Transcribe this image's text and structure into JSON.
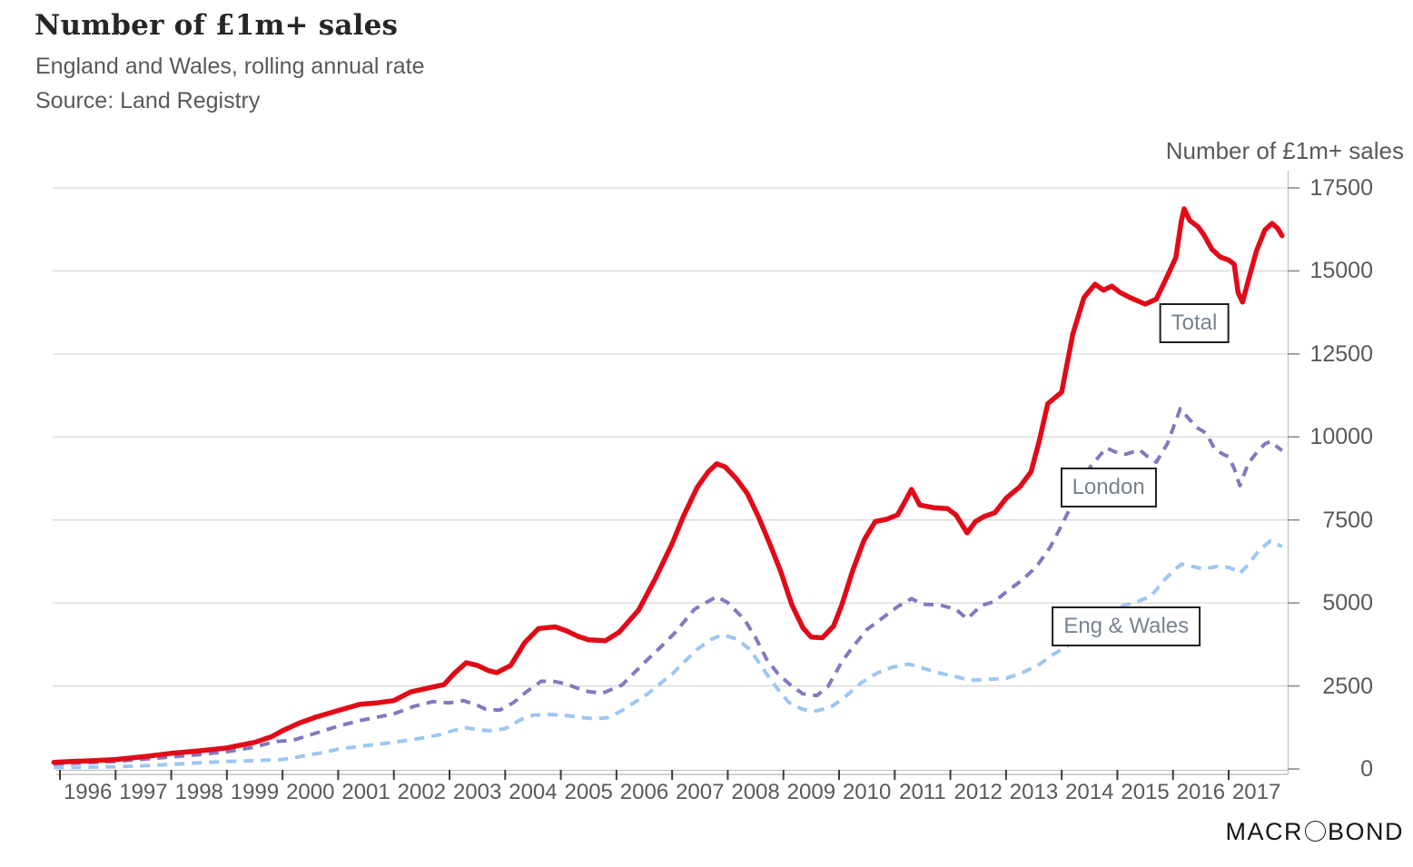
{
  "header": {
    "title": "Number of £1m+ sales",
    "subtitle": "England and Wales, rolling annual rate",
    "source": "Source: Land Registry"
  },
  "right_axis_title": "Number of £1m+ sales",
  "watermark": {
    "part1": "MACR",
    "part2": "BOND",
    "circle_icon": "circle-o-icon"
  },
  "colors": {
    "total": "#e20a18",
    "london": "#8478bf",
    "eng_wales": "#9dc6f2",
    "grid": "#d9d9d9",
    "axis_line": "#c3c3c3",
    "axis_line2": "#b3b3b3",
    "x_tick": "#3b3b3b",
    "y_tick": "#8c8c8c",
    "label_text": "#595959",
    "box_border": "#1f1f1f",
    "box_text": "#78828f"
  },
  "chart_data": {
    "type": "line",
    "title": "Number of £1m+ sales",
    "subtitle": "England and Wales, rolling annual rate",
    "source": "Land Registry",
    "grid": "horizontal",
    "legend_position": "on-chart-boxes",
    "x_axis": {
      "min": 1995.89,
      "max": 2018.06,
      "ticks": [
        1996,
        1997,
        1998,
        1999,
        2000,
        2001,
        2002,
        2003,
        2004,
        2005,
        2006,
        2007,
        2008,
        2009,
        2010,
        2011,
        2012,
        2013,
        2014,
        2015,
        2016,
        2017
      ]
    },
    "y_axis": {
      "label": "Number of £1m+ sales",
      "side": "right",
      "min": 0,
      "max": 18020,
      "ticks": [
        0,
        2500,
        5000,
        7500,
        10000,
        12500,
        15000,
        17500
      ]
    },
    "series": [
      {
        "name": "Total",
        "style": "solid",
        "color": "#e20a18",
        "width": 5.5,
        "points": [
          [
            1995.89,
            200
          ],
          [
            1996.2,
            225
          ],
          [
            1996.6,
            250
          ],
          [
            1997.0,
            285
          ],
          [
            1997.5,
            370
          ],
          [
            1998.0,
            470
          ],
          [
            1998.5,
            545
          ],
          [
            1999.0,
            635
          ],
          [
            1999.5,
            800
          ],
          [
            1999.8,
            970
          ],
          [
            2000.0,
            1150
          ],
          [
            2000.3,
            1380
          ],
          [
            2000.6,
            1560
          ],
          [
            2001.0,
            1760
          ],
          [
            2001.4,
            1950
          ],
          [
            2001.7,
            1990
          ],
          [
            2002.0,
            2060
          ],
          [
            2002.3,
            2320
          ],
          [
            2002.6,
            2430
          ],
          [
            2002.9,
            2540
          ],
          [
            2003.1,
            2900
          ],
          [
            2003.3,
            3200
          ],
          [
            2003.5,
            3120
          ],
          [
            2003.7,
            2960
          ],
          [
            2003.85,
            2900
          ],
          [
            2004.1,
            3120
          ],
          [
            2004.35,
            3800
          ],
          [
            2004.6,
            4230
          ],
          [
            2004.9,
            4280
          ],
          [
            2005.1,
            4160
          ],
          [
            2005.3,
            4000
          ],
          [
            2005.5,
            3890
          ],
          [
            2005.8,
            3860
          ],
          [
            2006.05,
            4120
          ],
          [
            2006.4,
            4790
          ],
          [
            2006.7,
            5740
          ],
          [
            2007.0,
            6780
          ],
          [
            2007.2,
            7600
          ],
          [
            2007.45,
            8480
          ],
          [
            2007.65,
            8950
          ],
          [
            2007.8,
            9190
          ],
          [
            2007.95,
            9100
          ],
          [
            2008.15,
            8750
          ],
          [
            2008.35,
            8300
          ],
          [
            2008.55,
            7600
          ],
          [
            2008.75,
            6800
          ],
          [
            2008.95,
            5950
          ],
          [
            2009.15,
            4950
          ],
          [
            2009.35,
            4250
          ],
          [
            2009.5,
            3970
          ],
          [
            2009.7,
            3950
          ],
          [
            2009.9,
            4300
          ],
          [
            2010.05,
            4950
          ],
          [
            2010.25,
            6000
          ],
          [
            2010.45,
            6900
          ],
          [
            2010.65,
            7450
          ],
          [
            2010.85,
            7520
          ],
          [
            2011.05,
            7650
          ],
          [
            2011.2,
            8100
          ],
          [
            2011.3,
            8420
          ],
          [
            2011.45,
            7950
          ],
          [
            2011.7,
            7870
          ],
          [
            2011.95,
            7840
          ],
          [
            2012.1,
            7650
          ],
          [
            2012.3,
            7110
          ],
          [
            2012.45,
            7450
          ],
          [
            2012.6,
            7600
          ],
          [
            2012.8,
            7720
          ],
          [
            2013.0,
            8150
          ],
          [
            2013.25,
            8500
          ],
          [
            2013.45,
            8950
          ],
          [
            2013.6,
            9900
          ],
          [
            2013.75,
            11000
          ],
          [
            2014.0,
            11350
          ],
          [
            2014.2,
            13100
          ],
          [
            2014.4,
            14200
          ],
          [
            2014.6,
            14600
          ],
          [
            2014.75,
            14420
          ],
          [
            2014.9,
            14540
          ],
          [
            2015.05,
            14350
          ],
          [
            2015.25,
            14180
          ],
          [
            2015.5,
            14000
          ],
          [
            2015.7,
            14150
          ],
          [
            2015.9,
            14850
          ],
          [
            2016.05,
            15400
          ],
          [
            2016.15,
            16500
          ],
          [
            2016.2,
            16870
          ],
          [
            2016.3,
            16520
          ],
          [
            2016.45,
            16330
          ],
          [
            2016.55,
            16100
          ],
          [
            2016.7,
            15650
          ],
          [
            2016.85,
            15420
          ],
          [
            2017.0,
            15330
          ],
          [
            2017.1,
            15200
          ],
          [
            2017.17,
            14350
          ],
          [
            2017.25,
            14060
          ],
          [
            2017.35,
            14700
          ],
          [
            2017.5,
            15600
          ],
          [
            2017.65,
            16230
          ],
          [
            2017.78,
            16430
          ],
          [
            2017.88,
            16280
          ],
          [
            2017.96,
            16060
          ]
        ]
      },
      {
        "name": "London",
        "style": "dashed",
        "color": "#8478bf",
        "width": 4,
        "points": [
          [
            1995.89,
            150
          ],
          [
            1996.3,
            175
          ],
          [
            1996.7,
            200
          ],
          [
            1997.0,
            228
          ],
          [
            1997.5,
            295
          ],
          [
            1998.0,
            360
          ],
          [
            1998.5,
            435
          ],
          [
            1999.0,
            520
          ],
          [
            1999.5,
            660
          ],
          [
            1999.85,
            820
          ],
          [
            2000.2,
            870
          ],
          [
            2000.6,
            1080
          ],
          [
            2001.0,
            1290
          ],
          [
            2001.4,
            1460
          ],
          [
            2001.7,
            1560
          ],
          [
            2002.0,
            1660
          ],
          [
            2002.35,
            1880
          ],
          [
            2002.7,
            2030
          ],
          [
            2003.0,
            1990
          ],
          [
            2003.25,
            2060
          ],
          [
            2003.5,
            1920
          ],
          [
            2003.65,
            1800
          ],
          [
            2003.9,
            1770
          ],
          [
            2004.15,
            2000
          ],
          [
            2004.4,
            2350
          ],
          [
            2004.65,
            2640
          ],
          [
            2004.9,
            2630
          ],
          [
            2005.1,
            2560
          ],
          [
            2005.3,
            2430
          ],
          [
            2005.5,
            2330
          ],
          [
            2005.75,
            2280
          ],
          [
            2006.1,
            2530
          ],
          [
            2006.5,
            3200
          ],
          [
            2006.8,
            3680
          ],
          [
            2007.05,
            4100
          ],
          [
            2007.4,
            4810
          ],
          [
            2007.8,
            5190
          ],
          [
            2008.0,
            5010
          ],
          [
            2008.3,
            4500
          ],
          [
            2008.5,
            3950
          ],
          [
            2008.7,
            3300
          ],
          [
            2008.9,
            2870
          ],
          [
            2009.1,
            2570
          ],
          [
            2009.35,
            2260
          ],
          [
            2009.6,
            2210
          ],
          [
            2009.8,
            2480
          ],
          [
            2010.05,
            3230
          ],
          [
            2010.25,
            3680
          ],
          [
            2010.5,
            4200
          ],
          [
            2010.75,
            4510
          ],
          [
            2011.05,
            4890
          ],
          [
            2011.3,
            5130
          ],
          [
            2011.5,
            4960
          ],
          [
            2011.8,
            4940
          ],
          [
            2012.1,
            4810
          ],
          [
            2012.3,
            4520
          ],
          [
            2012.55,
            4920
          ],
          [
            2012.8,
            5050
          ],
          [
            2013.0,
            5330
          ],
          [
            2013.3,
            5700
          ],
          [
            2013.55,
            6100
          ],
          [
            2013.8,
            6700
          ],
          [
            2014.0,
            7340
          ],
          [
            2014.25,
            8200
          ],
          [
            2014.5,
            9070
          ],
          [
            2014.8,
            9670
          ],
          [
            2015.0,
            9520
          ],
          [
            2015.15,
            9480
          ],
          [
            2015.4,
            9610
          ],
          [
            2015.55,
            9400
          ],
          [
            2015.7,
            9240
          ],
          [
            2015.9,
            9800
          ],
          [
            2016.13,
            10850
          ],
          [
            2016.3,
            10520
          ],
          [
            2016.45,
            10260
          ],
          [
            2016.6,
            10110
          ],
          [
            2016.75,
            9630
          ],
          [
            2016.9,
            9480
          ],
          [
            2017.0,
            9400
          ],
          [
            2017.1,
            9050
          ],
          [
            2017.2,
            8530
          ],
          [
            2017.35,
            9200
          ],
          [
            2017.5,
            9520
          ],
          [
            2017.65,
            9790
          ],
          [
            2017.75,
            9860
          ],
          [
            2017.96,
            9590
          ]
        ]
      },
      {
        "name": "Eng & Wales",
        "style": "dashed",
        "color": "#9dc6f2",
        "width": 4,
        "points": [
          [
            1995.89,
            45
          ],
          [
            1996.4,
            50
          ],
          [
            1997.0,
            65
          ],
          [
            1997.5,
            95
          ],
          [
            1998.0,
            140
          ],
          [
            1998.5,
            185
          ],
          [
            1999.0,
            225
          ],
          [
            1999.5,
            252
          ],
          [
            2000.0,
            285
          ],
          [
            2000.4,
            400
          ],
          [
            2000.8,
            520
          ],
          [
            2001.0,
            600
          ],
          [
            2001.5,
            705
          ],
          [
            2002.0,
            800
          ],
          [
            2002.5,
            930
          ],
          [
            2002.8,
            1020
          ],
          [
            2003.05,
            1150
          ],
          [
            2003.3,
            1240
          ],
          [
            2003.5,
            1190
          ],
          [
            2003.7,
            1150
          ],
          [
            2004.0,
            1215
          ],
          [
            2004.3,
            1500
          ],
          [
            2004.5,
            1620
          ],
          [
            2004.8,
            1640
          ],
          [
            2005.1,
            1610
          ],
          [
            2005.35,
            1550
          ],
          [
            2005.6,
            1515
          ],
          [
            2005.85,
            1545
          ],
          [
            2006.1,
            1760
          ],
          [
            2006.55,
            2250
          ],
          [
            2007.0,
            2860
          ],
          [
            2007.45,
            3600
          ],
          [
            2007.7,
            3900
          ],
          [
            2007.9,
            4040
          ],
          [
            2008.15,
            3920
          ],
          [
            2008.4,
            3600
          ],
          [
            2008.7,
            2860
          ],
          [
            2008.9,
            2400
          ],
          [
            2009.1,
            2000
          ],
          [
            2009.35,
            1790
          ],
          [
            2009.6,
            1750
          ],
          [
            2009.85,
            1860
          ],
          [
            2010.1,
            2160
          ],
          [
            2010.4,
            2600
          ],
          [
            2010.7,
            2900
          ],
          [
            2010.95,
            3060
          ],
          [
            2011.25,
            3160
          ],
          [
            2011.5,
            3040
          ],
          [
            2011.8,
            2890
          ],
          [
            2012.1,
            2780
          ],
          [
            2012.35,
            2670
          ],
          [
            2012.7,
            2700
          ],
          [
            2013.0,
            2730
          ],
          [
            2013.3,
            2900
          ],
          [
            2013.6,
            3150
          ],
          [
            2013.85,
            3450
          ],
          [
            2014.1,
            3700
          ],
          [
            2014.4,
            4300
          ],
          [
            2014.7,
            4670
          ],
          [
            2015.0,
            4870
          ],
          [
            2015.3,
            5000
          ],
          [
            2015.6,
            5200
          ],
          [
            2015.85,
            5700
          ],
          [
            2016.0,
            5950
          ],
          [
            2016.15,
            6170
          ],
          [
            2016.35,
            6100
          ],
          [
            2016.55,
            6020
          ],
          [
            2016.8,
            6100
          ],
          [
            2017.0,
            6070
          ],
          [
            2017.12,
            5990
          ],
          [
            2017.2,
            5890
          ],
          [
            2017.35,
            6150
          ],
          [
            2017.55,
            6600
          ],
          [
            2017.75,
            6870
          ],
          [
            2017.96,
            6700
          ]
        ]
      }
    ],
    "series_labels": [
      {
        "text": "Total",
        "year": 2016.38,
        "value": 13430
      },
      {
        "text": "London",
        "year": 2014.84,
        "value": 8480
      },
      {
        "text": "Eng & Wales",
        "year": 2015.16,
        "value": 4295
      }
    ]
  }
}
